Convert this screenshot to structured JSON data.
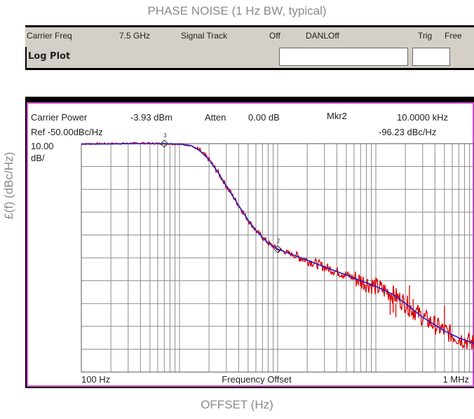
{
  "chart_data": {
    "type": "line",
    "title": "PHASE NOISE (1 Hz BW, typical)",
    "xlabel": "OFFSET (Hz)",
    "ylabel": "£(f) (dBc/Hz)",
    "x_scale": "log",
    "xlim": [
      100,
      1000000
    ],
    "ylim": [
      -150,
      -50
    ],
    "grid": true,
    "x_tick_labels": [
      "100 Hz",
      "Frequency Offset",
      "1 MHz"
    ],
    "series": [
      {
        "name": "",
        "color": "#dd0000",
        "x": [
          100,
          200,
          400,
          700,
          1000,
          1300,
          1600,
          2000,
          2500,
          3000,
          4000,
          5000,
          6000,
          7000,
          8000,
          10000,
          15000,
          20000,
          30000,
          50000,
          70000,
          100000,
          150000,
          200000,
          300000,
          500000,
          700000,
          1000000
        ],
        "y": [
          -50.1,
          -50.0,
          -49.8,
          -50.0,
          -50.2,
          -50.8,
          -53,
          -57,
          -63,
          -68.5,
          -77,
          -83.5,
          -88,
          -91,
          -93.5,
          -96.2,
          -99,
          -101,
          -104,
          -107.5,
          -110,
          -112.5,
          -116,
          -120,
          -126,
          -132,
          -135,
          -137.5
        ]
      },
      {
        "name": "",
        "color": "#2020cc",
        "x": [
          100,
          200,
          400,
          700,
          1000,
          1300,
          1600,
          2000,
          2500,
          3000,
          4000,
          5000,
          6000,
          7000,
          8000,
          10000,
          15000,
          20000,
          30000,
          50000,
          70000,
          100000,
          150000,
          200000,
          300000,
          500000,
          700000,
          1000000
        ],
        "y": [
          -50.2,
          -50.1,
          -50.0,
          -50.0,
          -50.2,
          -50.8,
          -53,
          -57,
          -63,
          -68.5,
          -77,
          -83.5,
          -88,
          -91,
          -93.5,
          -96.2,
          -99,
          -101,
          -104,
          -107.5,
          -110,
          -112.5,
          -116,
          -120,
          -126,
          -132,
          -135,
          -137.5
        ]
      }
    ],
    "spurs": [
      {
        "x": 140000,
        "top": -116,
        "base": -125
      },
      {
        "x": 150000,
        "top": -113,
        "base": -124
      },
      {
        "x": 160000,
        "top": -120,
        "base": -126
      },
      {
        "x": 220000,
        "top": -112,
        "base": -126
      },
      {
        "x": 240000,
        "top": -118,
        "base": -127
      },
      {
        "x": 500000,
        "top": -121,
        "base": -133
      }
    ],
    "markers": [
      {
        "label": "3",
        "x": 700,
        "y": -50.0
      },
      {
        "label": "2",
        "x": 10000,
        "y": -96.23
      }
    ]
  },
  "analyzer": {
    "header": {
      "carrier_freq_label": "Carrier Freq",
      "carrier_freq_value": "7.5 GHz",
      "signal_track_label": "Signal Track",
      "signal_track_value": "Off",
      "danl_label": "DANL",
      "danl_value": "Off",
      "trig_label": "Trig",
      "trig_value": "Free"
    },
    "view_title": "Log Plot",
    "carrier_power_label": "Carrier Power",
    "carrier_power_value": "-3.93 dBm",
    "atten_label": "Atten",
    "atten_value": "0.00 dB",
    "marker_label": "Mkr2",
    "marker_freq": "10.0000 kHz",
    "ref_level": "Ref -50.00dBc/Hz",
    "marker_level": "-96.23 dBc/Hz",
    "scale_value": "10.00",
    "scale_unit": "dB/"
  }
}
